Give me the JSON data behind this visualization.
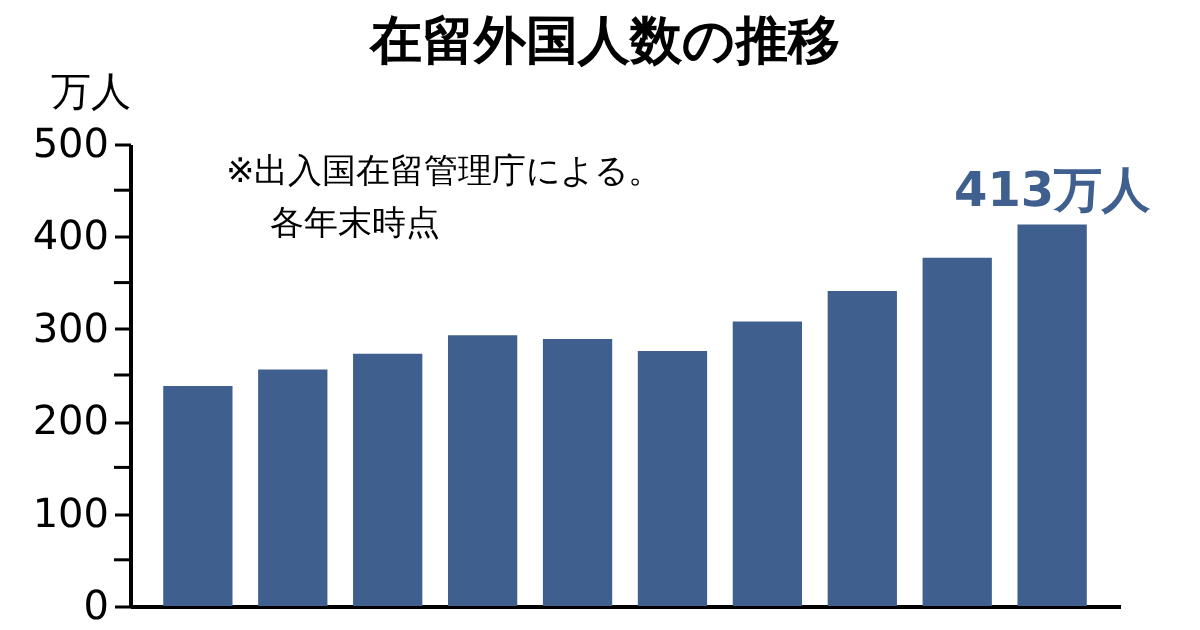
{
  "chart_data": {
    "type": "bar",
    "title": "在留外国人数の推移",
    "ylabel": "万人",
    "annotations": [
      "※出入国在留管理庁による。",
      "各年末時点"
    ],
    "categories": [
      null,
      null,
      null,
      null,
      null,
      null,
      null,
      null,
      null,
      null
    ],
    "series": [
      {
        "color": "#3f5f8f",
        "values": [
          238,
          256,
          273,
          293,
          289,
          276,
          308,
          341,
          377,
          413
        ],
        "value_labels": [
          null,
          null,
          null,
          null,
          null,
          null,
          null,
          null,
          null,
          "413万人"
        ]
      }
    ],
    "ylim": [
      0,
      500
    ],
    "yticks": [
      0,
      {
        "value": 50,
        "label": null
      },
      100,
      {
        "value": 150,
        "label": null
      },
      200,
      {
        "value": 250,
        "label": null
      },
      300,
      {
        "value": 350,
        "label": null
      },
      400,
      {
        "value": 450,
        "label": null
      },
      500
    ],
    "tick_labels": "y",
    "grid": false
  }
}
